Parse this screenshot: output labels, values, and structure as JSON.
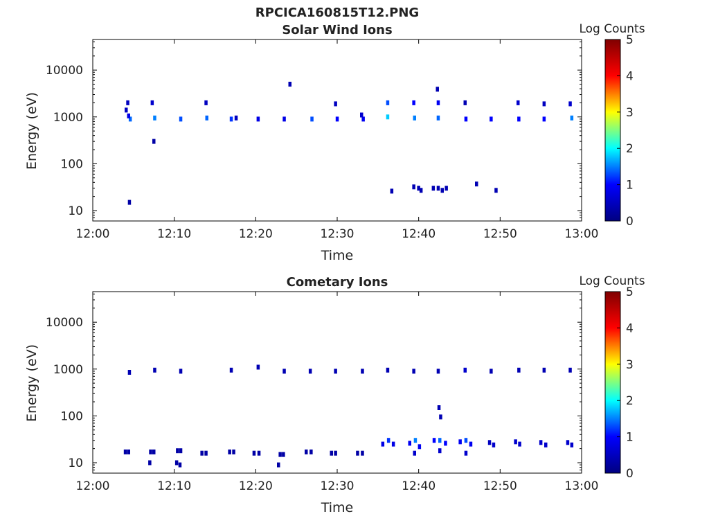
{
  "figure": {
    "title": "RPCICA160815T12.PNG"
  },
  "colormap": {
    "name": "jet",
    "stops": [
      "#000080",
      "#0000ff",
      "#00ffff",
      "#ffff00",
      "#ff0000",
      "#800000"
    ]
  },
  "chart_data": [
    {
      "type": "heatmap",
      "title": "Solar Wind Ions",
      "xlabel": "Time",
      "ylabel": "Energy (eV)",
      "x_ticks": [
        "12:00",
        "12:10",
        "12:20",
        "12:30",
        "12:40",
        "12:50",
        "13:00"
      ],
      "x_range_minutes": [
        0,
        60
      ],
      "y_scale": "log",
      "y_range": [
        6,
        45000
      ],
      "y_ticks": [
        "10",
        "100",
        "1000",
        "10000"
      ],
      "colorbar": {
        "label": "Log Counts",
        "range": [
          0,
          5
        ],
        "ticks": [
          "0",
          "1",
          "2",
          "3",
          "4",
          "5"
        ]
      },
      "cells": [
        {
          "t": 4.5,
          "e": 15,
          "c": 0.3
        },
        {
          "t": 4.3,
          "e": 2000,
          "c": 0.5
        },
        {
          "t": 4.1,
          "e": 1400,
          "c": 0.5
        },
        {
          "t": 4.6,
          "e": 900,
          "c": 1.4
        },
        {
          "t": 4.4,
          "e": 1050,
          "c": 0.8
        },
        {
          "t": 7.3,
          "e": 2000,
          "c": 0.6
        },
        {
          "t": 7.6,
          "e": 950,
          "c": 1.5
        },
        {
          "t": 7.5,
          "e": 300,
          "c": 0.3
        },
        {
          "t": 10.8,
          "e": 900,
          "c": 1.3
        },
        {
          "t": 13.9,
          "e": 2000,
          "c": 0.5
        },
        {
          "t": 14.0,
          "e": 950,
          "c": 1.4
        },
        {
          "t": 17.0,
          "e": 900,
          "c": 1.2
        },
        {
          "t": 17.6,
          "e": 950,
          "c": 0.5
        },
        {
          "t": 20.3,
          "e": 900,
          "c": 0.8
        },
        {
          "t": 23.5,
          "e": 900,
          "c": 0.8
        },
        {
          "t": 24.2,
          "e": 5000,
          "c": 0.4
        },
        {
          "t": 26.9,
          "e": 900,
          "c": 1.3
        },
        {
          "t": 29.8,
          "e": 1900,
          "c": 0.5
        },
        {
          "t": 30.0,
          "e": 900,
          "c": 1.0
        },
        {
          "t": 33.2,
          "e": 900,
          "c": 0.9
        },
        {
          "t": 33.0,
          "e": 1100,
          "c": 0.6
        },
        {
          "t": 36.2,
          "e": 2000,
          "c": 1.3
        },
        {
          "t": 36.2,
          "e": 1000,
          "c": 1.8
        },
        {
          "t": 36.7,
          "e": 26,
          "c": 0.4
        },
        {
          "t": 39.4,
          "e": 2000,
          "c": 1.0
        },
        {
          "t": 39.5,
          "e": 950,
          "c": 1.5
        },
        {
          "t": 39.4,
          "e": 32,
          "c": 0.4
        },
        {
          "t": 40.0,
          "e": 30,
          "c": 0.4
        },
        {
          "t": 40.3,
          "e": 27,
          "c": 0.4
        },
        {
          "t": 42.3,
          "e": 3900,
          "c": 0.4
        },
        {
          "t": 42.4,
          "e": 2000,
          "c": 0.9
        },
        {
          "t": 42.4,
          "e": 950,
          "c": 1.4
        },
        {
          "t": 41.8,
          "e": 30,
          "c": 0.4
        },
        {
          "t": 42.4,
          "e": 30,
          "c": 0.4
        },
        {
          "t": 42.9,
          "e": 27,
          "c": 0.4
        },
        {
          "t": 43.4,
          "e": 30,
          "c": 0.4
        },
        {
          "t": 45.7,
          "e": 2000,
          "c": 0.4
        },
        {
          "t": 45.8,
          "e": 900,
          "c": 1.0
        },
        {
          "t": 47.1,
          "e": 37,
          "c": 0.4
        },
        {
          "t": 48.9,
          "e": 900,
          "c": 1.0
        },
        {
          "t": 49.5,
          "e": 27,
          "c": 0.4
        },
        {
          "t": 52.2,
          "e": 2000,
          "c": 0.6
        },
        {
          "t": 52.3,
          "e": 900,
          "c": 1.0
        },
        {
          "t": 55.4,
          "e": 1900,
          "c": 0.5
        },
        {
          "t": 55.4,
          "e": 900,
          "c": 1.0
        },
        {
          "t": 58.6,
          "e": 1900,
          "c": 0.6
        },
        {
          "t": 58.8,
          "e": 950,
          "c": 1.5
        }
      ]
    },
    {
      "type": "heatmap",
      "title": "Cometary Ions",
      "xlabel": "Time",
      "ylabel": "Energy (eV)",
      "x_ticks": [
        "12:00",
        "12:10",
        "12:20",
        "12:30",
        "12:40",
        "12:50",
        "13:00"
      ],
      "x_range_minutes": [
        0,
        60
      ],
      "y_scale": "log",
      "y_range": [
        6,
        45000
      ],
      "y_ticks": [
        "10",
        "100",
        "1000",
        "10000"
      ],
      "colorbar": {
        "label": "Log Counts",
        "range": [
          0,
          5
        ],
        "ticks": [
          "0",
          "1",
          "2",
          "3",
          "4",
          "5"
        ]
      },
      "cells": [
        {
          "t": 4.5,
          "e": 850,
          "c": 0.4
        },
        {
          "t": 7.6,
          "e": 950,
          "c": 0.4
        },
        {
          "t": 10.8,
          "e": 900,
          "c": 0.4
        },
        {
          "t": 17.0,
          "e": 950,
          "c": 0.4
        },
        {
          "t": 20.3,
          "e": 1100,
          "c": 0.4
        },
        {
          "t": 23.5,
          "e": 900,
          "c": 0.4
        },
        {
          "t": 26.7,
          "e": 900,
          "c": 0.4
        },
        {
          "t": 29.8,
          "e": 900,
          "c": 0.4
        },
        {
          "t": 33.1,
          "e": 900,
          "c": 0.4
        },
        {
          "t": 36.2,
          "e": 950,
          "c": 0.4
        },
        {
          "t": 39.4,
          "e": 900,
          "c": 0.4
        },
        {
          "t": 42.4,
          "e": 900,
          "c": 0.4
        },
        {
          "t": 45.7,
          "e": 950,
          "c": 0.6
        },
        {
          "t": 48.9,
          "e": 900,
          "c": 0.4
        },
        {
          "t": 52.3,
          "e": 950,
          "c": 0.4
        },
        {
          "t": 55.4,
          "e": 950,
          "c": 0.4
        },
        {
          "t": 58.6,
          "e": 950,
          "c": 0.4
        },
        {
          "t": 42.5,
          "e": 150,
          "c": 0.4
        },
        {
          "t": 42.7,
          "e": 95,
          "c": 0.4
        },
        {
          "t": 4.0,
          "e": 17,
          "c": 0.3
        },
        {
          "t": 4.4,
          "e": 17,
          "c": 0.3
        },
        {
          "t": 7.1,
          "e": 17,
          "c": 0.3
        },
        {
          "t": 7.5,
          "e": 17,
          "c": 0.3
        },
        {
          "t": 7.0,
          "e": 10,
          "c": 0.3
        },
        {
          "t": 10.4,
          "e": 18,
          "c": 0.3
        },
        {
          "t": 10.8,
          "e": 18,
          "c": 0.3
        },
        {
          "t": 10.3,
          "e": 10,
          "c": 0.3
        },
        {
          "t": 10.7,
          "e": 9,
          "c": 0.3
        },
        {
          "t": 13.4,
          "e": 16,
          "c": 0.3
        },
        {
          "t": 13.9,
          "e": 16,
          "c": 0.3
        },
        {
          "t": 16.8,
          "e": 17,
          "c": 0.3
        },
        {
          "t": 17.3,
          "e": 17,
          "c": 0.3
        },
        {
          "t": 19.8,
          "e": 16,
          "c": 0.3
        },
        {
          "t": 20.4,
          "e": 16,
          "c": 0.3
        },
        {
          "t": 23.0,
          "e": 15,
          "c": 0.3
        },
        {
          "t": 23.4,
          "e": 15,
          "c": 0.3
        },
        {
          "t": 22.8,
          "e": 9,
          "c": 0.3
        },
        {
          "t": 26.2,
          "e": 17,
          "c": 0.3
        },
        {
          "t": 26.8,
          "e": 17,
          "c": 0.3
        },
        {
          "t": 29.3,
          "e": 16,
          "c": 0.3
        },
        {
          "t": 29.8,
          "e": 16,
          "c": 0.3
        },
        {
          "t": 32.5,
          "e": 16,
          "c": 0.3
        },
        {
          "t": 33.1,
          "e": 16,
          "c": 0.3
        },
        {
          "t": 35.6,
          "e": 25,
          "c": 0.8
        },
        {
          "t": 36.3,
          "e": 30,
          "c": 1.2
        },
        {
          "t": 36.9,
          "e": 25,
          "c": 0.8
        },
        {
          "t": 38.9,
          "e": 26,
          "c": 0.9
        },
        {
          "t": 39.6,
          "e": 30,
          "c": 1.5
        },
        {
          "t": 40.1,
          "e": 22,
          "c": 0.9
        },
        {
          "t": 39.5,
          "e": 16,
          "c": 0.6
        },
        {
          "t": 41.9,
          "e": 30,
          "c": 1.0
        },
        {
          "t": 42.6,
          "e": 30,
          "c": 1.4
        },
        {
          "t": 43.3,
          "e": 26,
          "c": 1.0
        },
        {
          "t": 42.6,
          "e": 18,
          "c": 0.6
        },
        {
          "t": 45.1,
          "e": 28,
          "c": 0.9
        },
        {
          "t": 45.8,
          "e": 30,
          "c": 1.3
        },
        {
          "t": 46.4,
          "e": 25,
          "c": 0.9
        },
        {
          "t": 45.8,
          "e": 16,
          "c": 0.6
        },
        {
          "t": 48.7,
          "e": 27,
          "c": 0.5
        },
        {
          "t": 49.2,
          "e": 24,
          "c": 0.6
        },
        {
          "t": 51.9,
          "e": 28,
          "c": 0.6
        },
        {
          "t": 52.4,
          "e": 25,
          "c": 0.6
        },
        {
          "t": 55.0,
          "e": 27,
          "c": 0.6
        },
        {
          "t": 55.6,
          "e": 24,
          "c": 0.6
        },
        {
          "t": 58.3,
          "e": 27,
          "c": 0.6
        },
        {
          "t": 58.8,
          "e": 24,
          "c": 0.6
        }
      ]
    }
  ]
}
